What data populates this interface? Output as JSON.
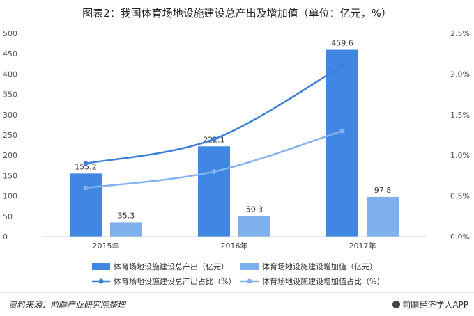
{
  "title": "图表2：我国体育场地设施建设总产出及增加值（单位：亿元，%）",
  "source": "资料来源：前瞻产业研究院整理",
  "brand": "前瞻经济学人APP",
  "colors": {
    "bar_main": "#3f87e2",
    "bar_sub": "#7fb0ee",
    "line_main": "#3a7fd9",
    "line_sub": "#83b3ee"
  },
  "chart_data": {
    "type": "bar",
    "categories": [
      "2015年",
      "2016年",
      "2017年"
    ],
    "series": [
      {
        "name": "体育场地设施建设总产出（亿元）",
        "kind": "bar",
        "axis": "left",
        "values": [
          155.2,
          222.1,
          459.6
        ],
        "labels": [
          "155.2",
          "222.1",
          "459.6"
        ]
      },
      {
        "name": "体育场地设施建设增加值（亿元）",
        "kind": "bar",
        "axis": "left",
        "values": [
          35.3,
          50.3,
          97.8
        ],
        "labels": [
          "35.3",
          "50.3",
          "97.8"
        ]
      },
      {
        "name": "体育场地设施建设总产出占比（%）",
        "kind": "line",
        "axis": "right",
        "values": [
          0.9,
          1.2,
          2.1
        ]
      },
      {
        "name": "体育场地设施建设增加值占比（%）",
        "kind": "line",
        "axis": "right",
        "values": [
          0.6,
          0.8,
          1.3
        ]
      }
    ],
    "ylim": [
      0,
      500
    ],
    "yticks": [
      "0",
      "50",
      "100",
      "150",
      "200",
      "250",
      "300",
      "350",
      "400",
      "450",
      "500"
    ],
    "y2lim": [
      0,
      2.5
    ],
    "y2ticks": [
      "0.0%",
      "0.5%",
      "1.0%",
      "1.5%",
      "2.0%",
      "2.5%"
    ],
    "legend_position": "bottom",
    "grid": false
  }
}
